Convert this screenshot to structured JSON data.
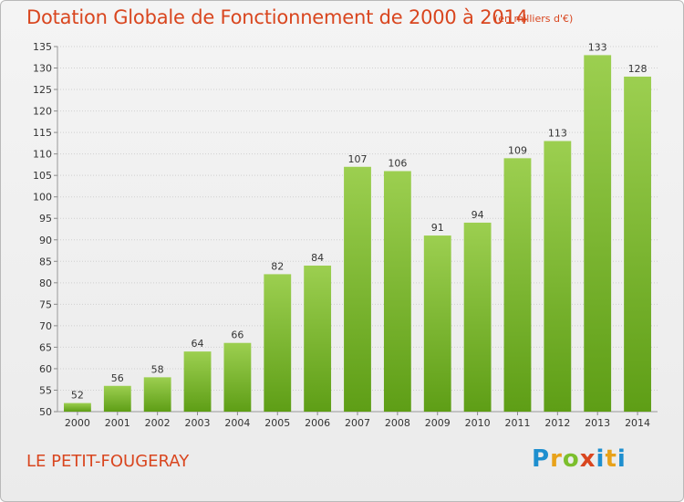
{
  "header": {
    "title": "Dotation Globale de Fonctionnement de 2000 à 2014",
    "unit": "(en milliers d'€)"
  },
  "footer": {
    "place": "LE PETIT-FOUGERAY",
    "logo": "Proxiti"
  },
  "colors": {
    "title": "#d9461f",
    "bar_top": "#9ccf50",
    "bar_bottom": "#5e9e16",
    "grid": "#cfcfcf"
  },
  "chart_data": {
    "type": "bar",
    "title": "Dotation Globale de Fonctionnement de 2000 à 2014",
    "xlabel": "",
    "ylabel": "",
    "categories": [
      "2000",
      "2001",
      "2002",
      "2003",
      "2004",
      "2005",
      "2006",
      "2007",
      "2008",
      "2009",
      "2010",
      "2011",
      "2012",
      "2013",
      "2014"
    ],
    "values": [
      52,
      56,
      58,
      64,
      66,
      82,
      84,
      107,
      106,
      91,
      94,
      109,
      113,
      133,
      128
    ],
    "ylim": [
      50,
      135
    ],
    "yticks": [
      50,
      55,
      60,
      65,
      70,
      75,
      80,
      85,
      90,
      95,
      100,
      105,
      110,
      115,
      120,
      125,
      130,
      135
    ],
    "grid": true,
    "legend": "none"
  }
}
